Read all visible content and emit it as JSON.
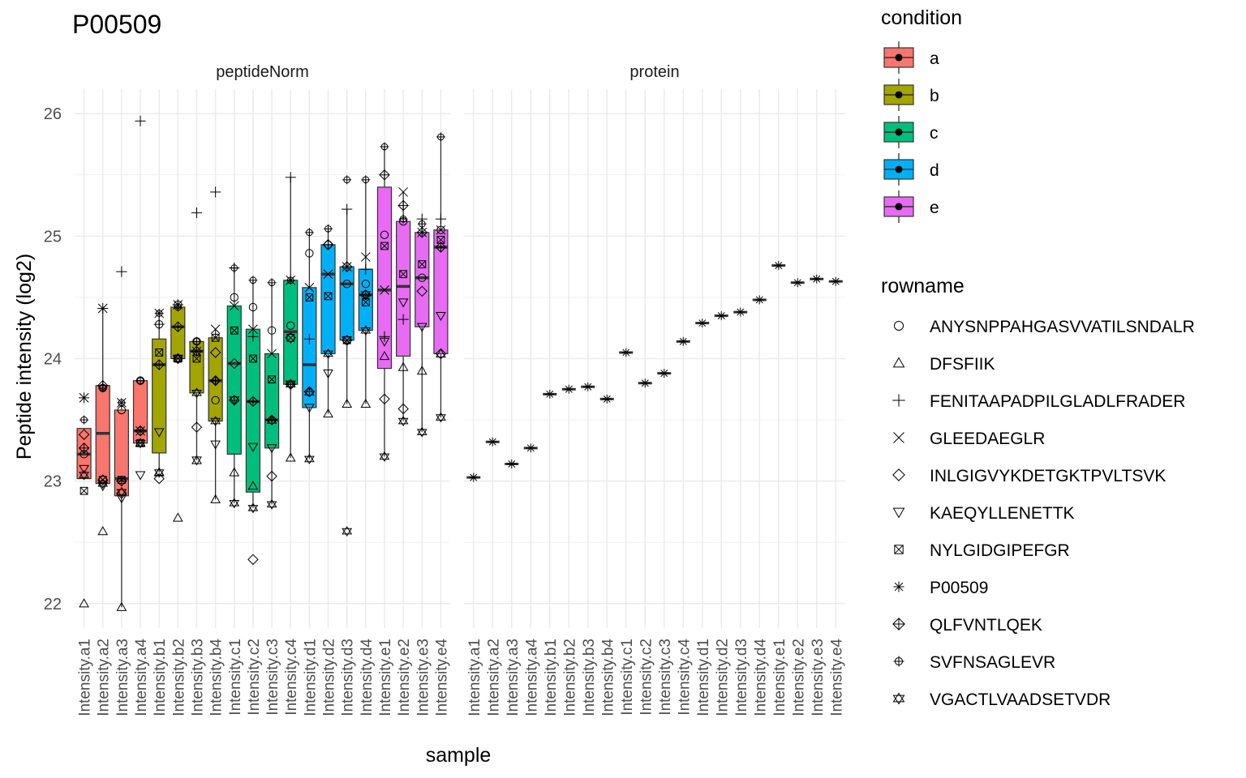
{
  "chart_data": {
    "type": "boxplot",
    "title": "P00509",
    "xlabel": "sample",
    "ylabel": "Peptide intensity (log2)",
    "ylim": [
      21.8,
      26.2
    ],
    "yticks": [
      22,
      23,
      24,
      25,
      26
    ],
    "grid": true,
    "legend_position": "right",
    "facets": [
      "peptideNorm",
      "protein"
    ],
    "samples": [
      "Intensity.a1",
      "Intensity.a2",
      "Intensity.a3",
      "Intensity.a4",
      "Intensity.b1",
      "Intensity.b2",
      "Intensity.b3",
      "Intensity.b4",
      "Intensity.c1",
      "Intensity.c2",
      "Intensity.c3",
      "Intensity.c4",
      "Intensity.d1",
      "Intensity.d2",
      "Intensity.d3",
      "Intensity.d4",
      "Intensity.e1",
      "Intensity.e2",
      "Intensity.e3",
      "Intensity.e4"
    ],
    "condition_legend": {
      "title": "condition",
      "items": [
        {
          "label": "a",
          "color": "#F8766D"
        },
        {
          "label": "b",
          "color": "#A3A500"
        },
        {
          "label": "c",
          "color": "#00BF7D"
        },
        {
          "label": "d",
          "color": "#00B0F6"
        },
        {
          "label": "e",
          "color": "#E76BF3"
        }
      ]
    },
    "rowname_legend": {
      "title": "rowname",
      "items": [
        {
          "label": "ANYSNPPAHGASVVATILSNDALR",
          "shape": "circle"
        },
        {
          "label": "DFSFIIK",
          "shape": "triangle"
        },
        {
          "label": "FENITAAPADPILGLADLFRADER",
          "shape": "plus"
        },
        {
          "label": "GLEEDAEGLR",
          "shape": "cross"
        },
        {
          "label": "INLGIGVYKDETGKTPVLTSVK",
          "shape": "diamond"
        },
        {
          "label": "KAEQYLLENETTK",
          "shape": "triangle-down"
        },
        {
          "label": "NYLGIDGIPEFGR",
          "shape": "square-x"
        },
        {
          "label": "P00509",
          "shape": "asterisk"
        },
        {
          "label": "QLFVNTLQEK",
          "shape": "diamond-plus"
        },
        {
          "label": "SVFNSAGLEVR",
          "shape": "circle-plus"
        },
        {
          "label": "VGACTLVAADSETVDR",
          "shape": "star-david"
        }
      ]
    },
    "boxes": [
      {
        "sample": "Intensity.a1",
        "condition": "a",
        "q1": 23.02,
        "median": 23.22,
        "q3": 23.43,
        "lo": 23.02,
        "hi": 23.43
      },
      {
        "sample": "Intensity.a2",
        "condition": "a",
        "q1": 22.98,
        "median": 23.39,
        "q3": 23.78,
        "lo": 22.98,
        "hi": 24.41
      },
      {
        "sample": "Intensity.a3",
        "condition": "a",
        "q1": 22.88,
        "median": 23.02,
        "q3": 23.58,
        "lo": 21.97,
        "hi": 23.64
      },
      {
        "sample": "Intensity.a4",
        "condition": "a",
        "q1": 23.31,
        "median": 23.41,
        "q3": 23.82,
        "lo": 23.31,
        "hi": 23.82
      },
      {
        "sample": "Intensity.b1",
        "condition": "b",
        "q1": 23.23,
        "median": 23.95,
        "q3": 24.16,
        "lo": 23.07,
        "hi": 24.37
      },
      {
        "sample": "Intensity.b2",
        "condition": "b",
        "q1": 24.0,
        "median": 24.26,
        "q3": 24.42,
        "lo": 24.0,
        "hi": 24.44
      },
      {
        "sample": "Intensity.b3",
        "condition": "b",
        "q1": 23.72,
        "median": 24.06,
        "q3": 24.14,
        "lo": 23.17,
        "hi": 24.14
      },
      {
        "sample": "Intensity.b4",
        "condition": "b",
        "q1": 23.49,
        "median": 23.82,
        "q3": 24.17,
        "lo": 22.85,
        "hi": 24.24
      },
      {
        "sample": "Intensity.c1",
        "condition": "c",
        "q1": 23.22,
        "median": 23.96,
        "q3": 24.43,
        "lo": 22.82,
        "hi": 24.74
      },
      {
        "sample": "Intensity.c2",
        "condition": "c",
        "q1": 22.91,
        "median": 23.65,
        "q3": 24.24,
        "lo": 22.78,
        "hi": 24.64
      },
      {
        "sample": "Intensity.c3",
        "condition": "c",
        "q1": 23.27,
        "median": 23.5,
        "q3": 24.04,
        "lo": 22.81,
        "hi": 24.62
      },
      {
        "sample": "Intensity.c4",
        "condition": "c",
        "q1": 23.79,
        "median": 24.22,
        "q3": 24.64,
        "lo": 23.19,
        "hi": 25.48
      },
      {
        "sample": "Intensity.d1",
        "condition": "d",
        "q1": 23.6,
        "median": 23.95,
        "q3": 24.58,
        "lo": 23.18,
        "hi": 25.03
      },
      {
        "sample": "Intensity.d2",
        "condition": "d",
        "q1": 24.04,
        "median": 24.69,
        "q3": 24.93,
        "lo": 23.55,
        "hi": 25.06
      },
      {
        "sample": "Intensity.d3",
        "condition": "d",
        "q1": 24.15,
        "median": 24.61,
        "q3": 24.75,
        "lo": 23.63,
        "hi": 25.22
      },
      {
        "sample": "Intensity.d4",
        "condition": "d",
        "q1": 24.23,
        "median": 24.52,
        "q3": 24.73,
        "lo": 23.63,
        "hi": 25.46
      },
      {
        "sample": "Intensity.e1",
        "condition": "e",
        "q1": 23.92,
        "median": 24.56,
        "q3": 25.4,
        "lo": 23.2,
        "hi": 25.73
      },
      {
        "sample": "Intensity.e2",
        "condition": "e",
        "q1": 24.02,
        "median": 24.59,
        "q3": 25.12,
        "lo": 23.49,
        "hi": 25.36
      },
      {
        "sample": "Intensity.e3",
        "condition": "e",
        "q1": 24.26,
        "median": 24.66,
        "q3": 25.03,
        "lo": 23.4,
        "hi": 25.14
      },
      {
        "sample": "Intensity.e4",
        "condition": "e",
        "q1": 24.04,
        "median": 24.91,
        "q3": 25.05,
        "lo": 23.52,
        "hi": 25.81
      }
    ],
    "peptide_points": [
      {
        "sample": "Intensity.a1",
        "values": [
          23.22,
          22.0,
          23.68,
          23.68,
          23.38,
          23.1,
          22.92,
          null,
          23.27,
          23.5,
          23.05
        ]
      },
      {
        "sample": "Intensity.a2",
        "values": [
          23.76,
          22.59,
          24.41,
          24.41,
          23.01,
          22.96,
          23.01,
          null,
          23.78,
          23.76,
          22.98
        ]
      },
      {
        "sample": "Intensity.a3",
        "values": [
          23.58,
          21.97,
          24.71,
          23.64,
          22.9,
          22.86,
          23.01,
          null,
          23.0,
          23.64,
          22.91
        ]
      },
      {
        "sample": "Intensity.a4",
        "values": [
          23.82,
          23.31,
          25.94,
          23.41,
          23.41,
          23.05,
          23.31,
          null,
          23.41,
          23.82,
          23.31
        ]
      },
      {
        "sample": "Intensity.b1",
        "values": [
          24.28,
          23.07,
          24.28,
          24.37,
          23.02,
          23.4,
          24.05,
          null,
          23.95,
          24.37,
          23.07
        ]
      },
      {
        "sample": "Intensity.b2",
        "values": [
          24.44,
          22.7,
          24.44,
          24.44,
          24.0,
          24.0,
          24.0,
          null,
          24.26,
          24.42,
          24.0
        ]
      },
      {
        "sample": "Intensity.b3",
        "values": [
          24.14,
          23.17,
          25.19,
          24.06,
          23.44,
          23.17,
          24.0,
          null,
          24.06,
          24.14,
          23.72
        ]
      },
      {
        "sample": "Intensity.b4",
        "values": [
          23.66,
          22.85,
          25.36,
          24.24,
          24.05,
          23.3,
          24.17,
          null,
          23.82,
          23.82,
          23.49
        ]
      },
      {
        "sample": "Intensity.c1",
        "values": [
          24.5,
          23.07,
          24.74,
          24.43,
          23.96,
          23.66,
          24.23,
          null,
          23.66,
          24.74,
          22.82
        ]
      },
      {
        "sample": "Intensity.c2",
        "values": [
          24.42,
          22.96,
          24.18,
          24.24,
          22.36,
          23.28,
          24.0,
          null,
          23.65,
          24.64,
          22.78
        ]
      },
      {
        "sample": "Intensity.c3",
        "values": [
          24.23,
          23.5,
          23.5,
          24.04,
          23.04,
          23.27,
          23.83,
          null,
          23.5,
          24.62,
          22.81
        ]
      },
      {
        "sample": "Intensity.c4",
        "values": [
          24.27,
          23.19,
          25.48,
          24.64,
          24.17,
          23.79,
          24.17,
          null,
          23.79,
          24.64,
          23.79
        ]
      },
      {
        "sample": "Intensity.d1",
        "values": [
          24.86,
          23.73,
          24.16,
          24.58,
          23.73,
          23.6,
          24.5,
          null,
          23.73,
          25.03,
          23.18
        ]
      },
      {
        "sample": "Intensity.d2",
        "values": [
          24.93,
          23.55,
          24.93,
          24.69,
          24.93,
          23.88,
          24.51,
          null,
          24.93,
          25.06,
          24.04
        ]
      },
      {
        "sample": "Intensity.d3",
        "values": [
          24.61,
          23.63,
          25.22,
          24.75,
          24.15,
          24.15,
          24.15,
          null,
          24.75,
          25.46,
          22.59
        ]
      },
      {
        "sample": "Intensity.d4",
        "values": [
          24.61,
          23.63,
          24.73,
          24.83,
          24.52,
          24.52,
          24.46,
          null,
          24.52,
          25.46,
          24.23
        ]
      },
      {
        "sample": "Intensity.e1",
        "values": [
          25.01,
          24.02,
          24.18,
          24.56,
          23.67,
          24.14,
          24.92,
          null,
          25.5,
          25.73,
          23.2
        ]
      },
      {
        "sample": "Intensity.e2",
        "values": [
          25.12,
          23.93,
          24.32,
          25.36,
          23.59,
          24.46,
          24.69,
          null,
          25.25,
          25.14,
          23.49
        ]
      },
      {
        "sample": "Intensity.e3",
        "values": [
          24.66,
          23.9,
          25.14,
          25.03,
          24.55,
          24.26,
          24.77,
          null,
          25.03,
          25.1,
          23.4
        ]
      },
      {
        "sample": "Intensity.e4",
        "values": [
          25.05,
          24.04,
          25.14,
          25.05,
          24.04,
          24.35,
          24.97,
          null,
          24.91,
          25.81,
          23.52
        ]
      }
    ],
    "protein_values": [
      23.03,
      23.32,
      23.14,
      23.27,
      23.71,
      23.75,
      23.77,
      23.67,
      24.05,
      23.8,
      23.88,
      24.14,
      24.29,
      24.35,
      24.38,
      24.48,
      24.76,
      24.62,
      24.65,
      24.63
    ]
  }
}
